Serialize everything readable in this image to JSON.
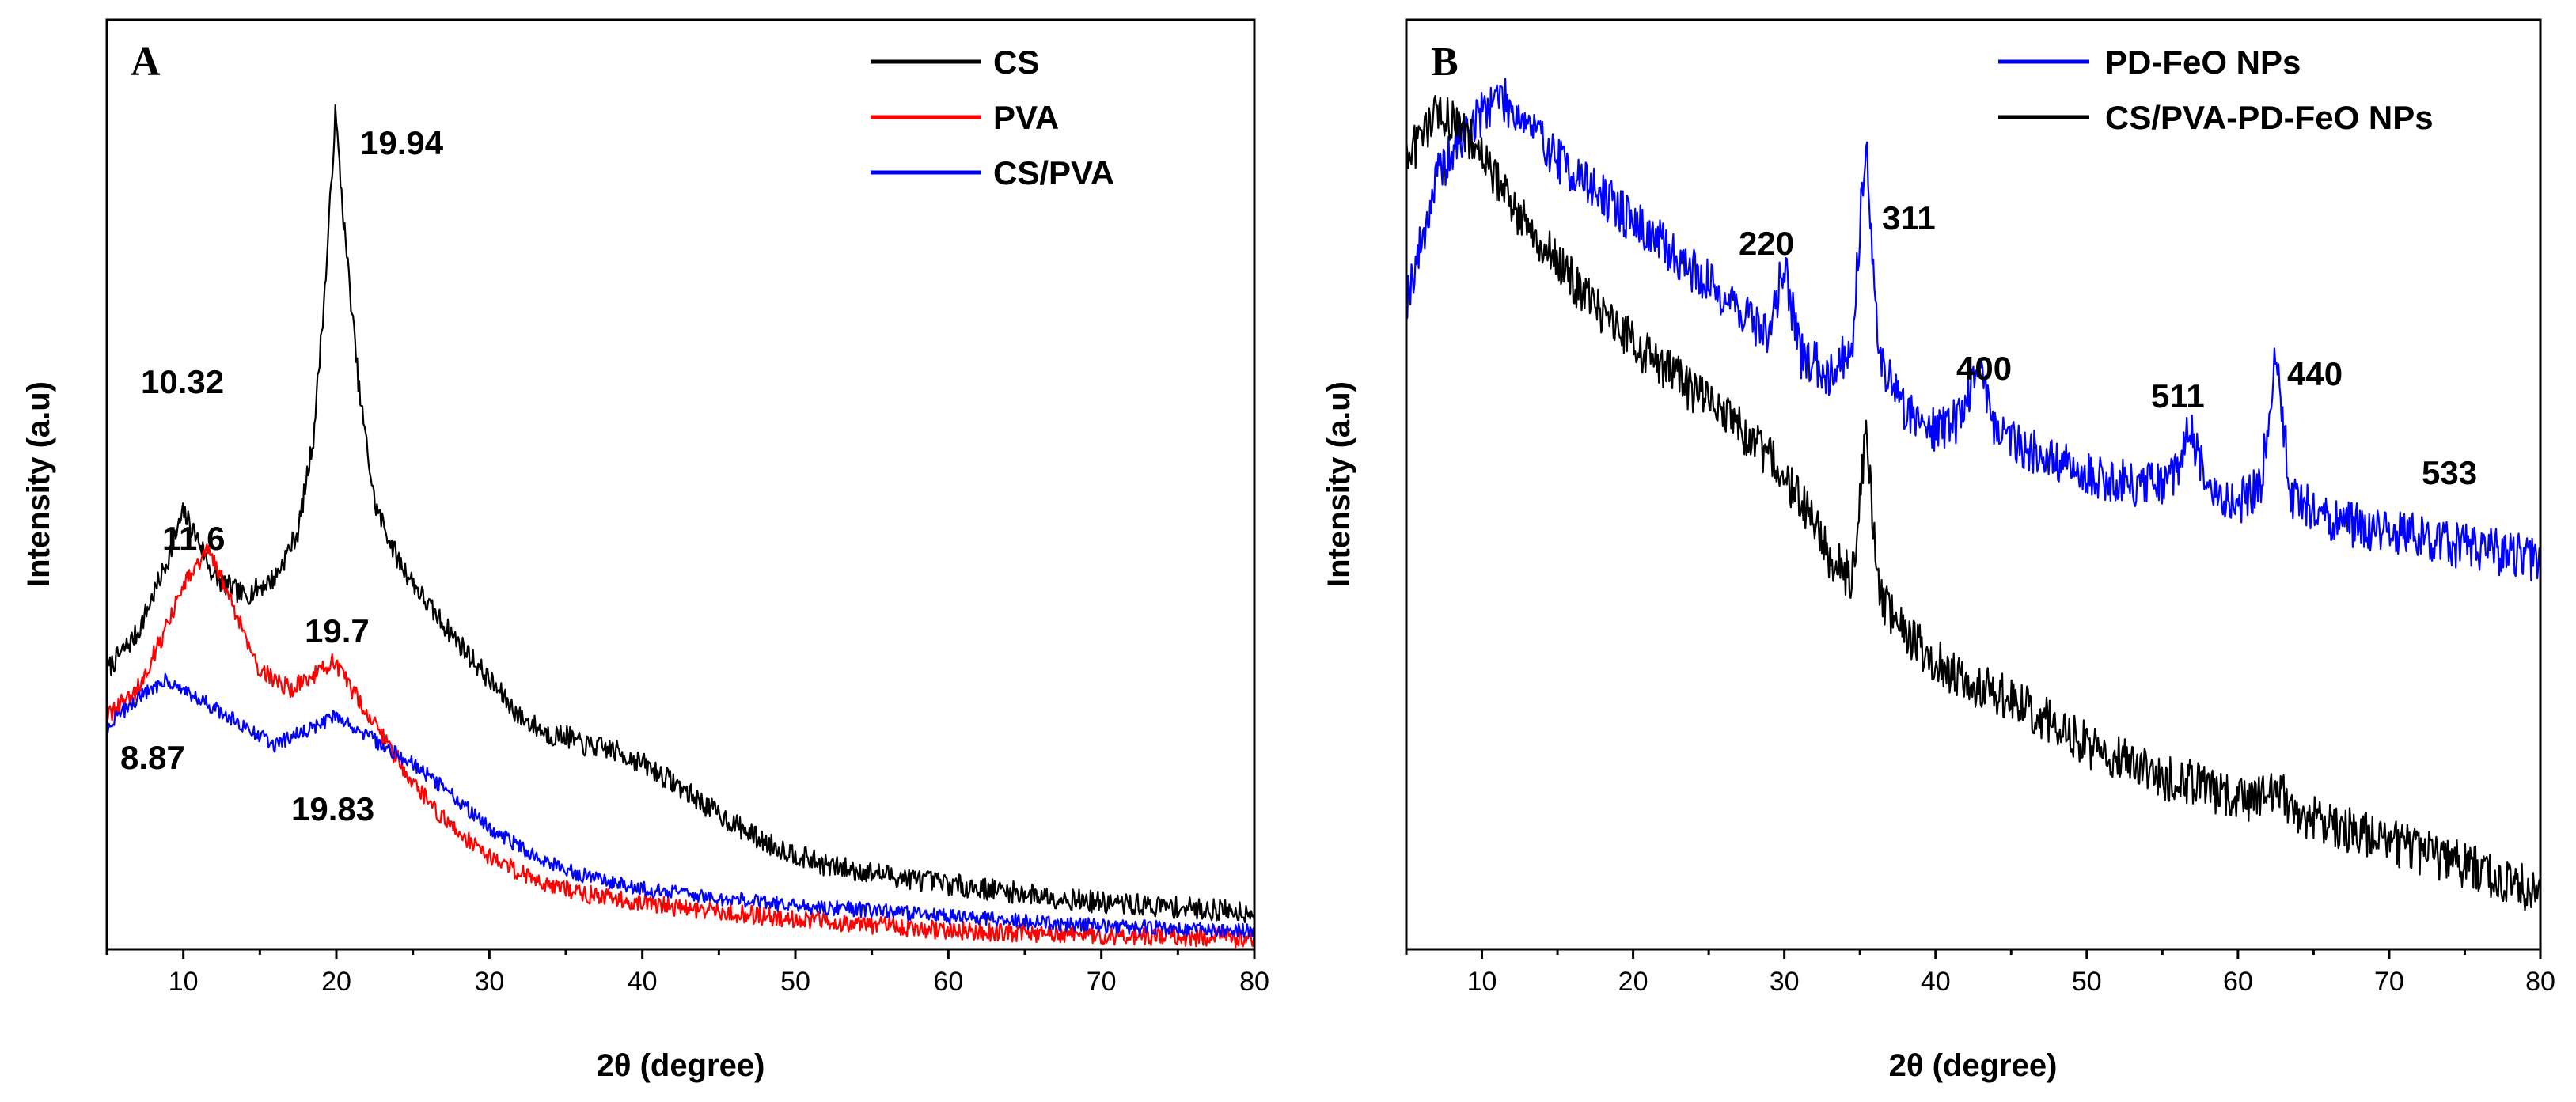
{
  "chart_data": [
    {
      "panel_label": "A",
      "type": "line",
      "xlabel": "2θ (degree)",
      "ylabel": "Intensity (a.u)",
      "xlim": [
        5,
        80
      ],
      "xticks": [
        10,
        20,
        30,
        40,
        50,
        60,
        70,
        80
      ],
      "y_tick_labels": false,
      "legend_position": "top-right",
      "series": [
        {
          "name": "CS",
          "color": "#000000",
          "points": [
            [
              5,
              0.3
            ],
            [
              7,
              0.34
            ],
            [
              9,
              0.42
            ],
            [
              10,
              0.47
            ],
            [
              11,
              0.44
            ],
            [
              12,
              0.4
            ],
            [
              14,
              0.38
            ],
            [
              16,
              0.4
            ],
            [
              17.5,
              0.45
            ],
            [
              18.5,
              0.55
            ],
            [
              19.3,
              0.72
            ],
            [
              19.94,
              0.9
            ],
            [
              20.5,
              0.78
            ],
            [
              21.5,
              0.6
            ],
            [
              22.5,
              0.48
            ],
            [
              24,
              0.42
            ],
            [
              26,
              0.37
            ],
            [
              28,
              0.33
            ],
            [
              30,
              0.29
            ],
            [
              32,
              0.25
            ],
            [
              34,
              0.23
            ],
            [
              35,
              0.23
            ],
            [
              36,
              0.22
            ],
            [
              38,
              0.215
            ],
            [
              40,
              0.2
            ],
            [
              42,
              0.18
            ],
            [
              45,
              0.145
            ],
            [
              48,
              0.115
            ],
            [
              52,
              0.09
            ],
            [
              56,
              0.08
            ],
            [
              60,
              0.07
            ],
            [
              65,
              0.06
            ],
            [
              70,
              0.05
            ],
            [
              75,
              0.045
            ],
            [
              80,
              0.04
            ]
          ],
          "noise": 0.012
        },
        {
          "name": "PVA",
          "color": "#ff0000",
          "points": [
            [
              5,
              0.25
            ],
            [
              7,
              0.28
            ],
            [
              9,
              0.35
            ],
            [
              10,
              0.39
            ],
            [
              11.6,
              0.43
            ],
            [
              13,
              0.38
            ],
            [
              15,
              0.3
            ],
            [
              17,
              0.28
            ],
            [
              19,
              0.3
            ],
            [
              19.7,
              0.31
            ],
            [
              21,
              0.28
            ],
            [
              23,
              0.23
            ],
            [
              25,
              0.18
            ],
            [
              27,
              0.14
            ],
            [
              30,
              0.1
            ],
            [
              33,
              0.075
            ],
            [
              36,
              0.06
            ],
            [
              40,
              0.05
            ],
            [
              45,
              0.04
            ],
            [
              50,
              0.033
            ],
            [
              55,
              0.026
            ],
            [
              60,
              0.02
            ],
            [
              70,
              0.015
            ],
            [
              80,
              0.012
            ]
          ],
          "noise": 0.01
        },
        {
          "name": "CS/PVA",
          "color": "#0000ff",
          "points": [
            [
              5,
              0.24
            ],
            [
              7,
              0.27
            ],
            [
              8.87,
              0.29
            ],
            [
              10,
              0.28
            ],
            [
              12,
              0.26
            ],
            [
              14,
              0.24
            ],
            [
              16,
              0.22
            ],
            [
              18,
              0.235
            ],
            [
              19.83,
              0.25
            ],
            [
              21,
              0.24
            ],
            [
              23,
              0.22
            ],
            [
              25,
              0.2
            ],
            [
              28,
              0.16
            ],
            [
              30,
              0.13
            ],
            [
              33,
              0.1
            ],
            [
              36,
              0.08
            ],
            [
              40,
              0.065
            ],
            [
              45,
              0.055
            ],
            [
              50,
              0.047
            ],
            [
              55,
              0.042
            ],
            [
              60,
              0.035
            ],
            [
              65,
              0.03
            ],
            [
              70,
              0.025
            ],
            [
              75,
              0.022
            ],
            [
              80,
              0.02
            ]
          ],
          "noise": 0.008
        }
      ],
      "annotations": [
        {
          "text": "19.94",
          "x": 19.94
        },
        {
          "text": "10.32",
          "x": 10.32
        },
        {
          "text": "11.6",
          "x": 11.6
        },
        {
          "text": "19.7",
          "x": 19.7
        },
        {
          "text": "8.87",
          "x": 8.87
        },
        {
          "text": "19.83",
          "x": 19.83
        }
      ]
    },
    {
      "panel_label": "B",
      "type": "line",
      "xlabel": "2θ (degree)",
      "ylabel": "Intensity (a.u)",
      "xlim": [
        5,
        80
      ],
      "xticks": [
        10,
        20,
        30,
        40,
        50,
        60,
        70,
        80
      ],
      "y_tick_labels": false,
      "legend_position": "top-right",
      "series": [
        {
          "name": "PD-FeO NPs",
          "color": "#0000ff",
          "points": [
            [
              5,
              0.7
            ],
            [
              6,
              0.76
            ],
            [
              7,
              0.83
            ],
            [
              9,
              0.88
            ],
            [
              11,
              0.92
            ],
            [
              13,
              0.89
            ],
            [
              15,
              0.85
            ],
            [
              18,
              0.81
            ],
            [
              21,
              0.77
            ],
            [
              24,
              0.73
            ],
            [
              27,
              0.69
            ],
            [
              29,
              0.66
            ],
            [
              30,
              0.74
            ],
            [
              31,
              0.64
            ],
            [
              33,
              0.62
            ],
            [
              34.5,
              0.65
            ],
            [
              35.4,
              0.88
            ],
            [
              36.2,
              0.64
            ],
            [
              38,
              0.58
            ],
            [
              40,
              0.56
            ],
            [
              41.5,
              0.57
            ],
            [
              42.9,
              0.63
            ],
            [
              44,
              0.56
            ],
            [
              47,
              0.53
            ],
            [
              50,
              0.51
            ],
            [
              53,
              0.5
            ],
            [
              55.5,
              0.5
            ],
            [
              56.9,
              0.56
            ],
            [
              58,
              0.49
            ],
            [
              60,
              0.48
            ],
            [
              61.5,
              0.5
            ],
            [
              62.5,
              0.64
            ],
            [
              63.5,
              0.49
            ],
            [
              66,
              0.46
            ],
            [
              70,
              0.45
            ],
            [
              73,
              0.44
            ],
            [
              76,
              0.43
            ],
            [
              80,
              0.42
            ]
          ],
          "noise": 0.025
        },
        {
          "name": "CS/PVA-PD-FeO NPs",
          "color": "#000000",
          "points": [
            [
              5,
              0.85
            ],
            [
              7,
              0.9
            ],
            [
              9,
              0.88
            ],
            [
              12,
              0.8
            ],
            [
              15,
              0.74
            ],
            [
              18,
              0.68
            ],
            [
              21,
              0.64
            ],
            [
              24,
              0.6
            ],
            [
              27,
              0.56
            ],
            [
              30,
              0.51
            ],
            [
              31,
              0.48
            ],
            [
              32,
              0.46
            ],
            [
              33,
              0.42
            ],
            [
              34.5,
              0.4
            ],
            [
              35.4,
              0.56
            ],
            [
              36.3,
              0.38
            ],
            [
              38,
              0.34
            ],
            [
              40,
              0.31
            ],
            [
              43,
              0.28
            ],
            [
              45.5,
              0.27
            ],
            [
              47,
              0.25
            ],
            [
              50,
              0.22
            ],
            [
              53,
              0.2
            ],
            [
              56,
              0.18
            ],
            [
              57,
              0.18
            ],
            [
              60,
              0.16
            ],
            [
              62.6,
              0.17
            ],
            [
              64,
              0.145
            ],
            [
              67,
              0.13
            ],
            [
              70,
              0.115
            ],
            [
              73,
              0.1
            ],
            [
              76,
              0.085
            ],
            [
              80,
              0.06
            ]
          ],
          "noise": 0.025
        }
      ],
      "annotations": [
        {
          "text": "220",
          "x": 30
        },
        {
          "text": "311",
          "x": 35.4
        },
        {
          "text": "400",
          "x": 42.9
        },
        {
          "text": "511",
          "x": 56.9
        },
        {
          "text": "440",
          "x": 62.5
        },
        {
          "text": "533",
          "x": 74
        }
      ]
    }
  ]
}
